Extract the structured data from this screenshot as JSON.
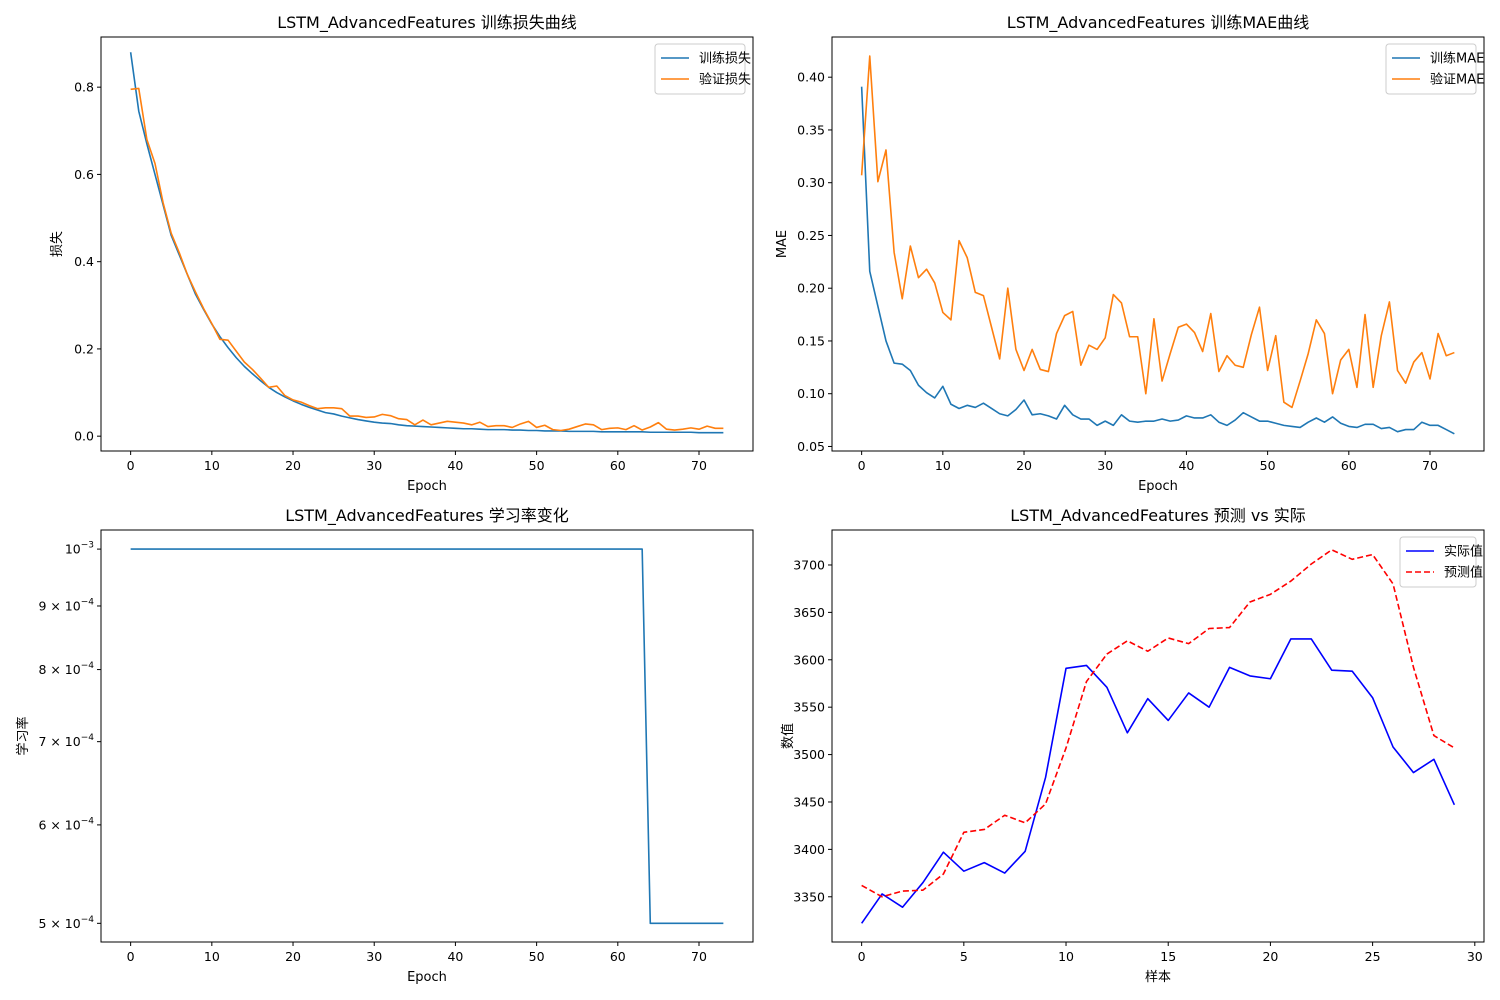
{
  "chart_data": [
    {
      "type": "line",
      "title": "LSTM_AdvancedFeatures 训练损失曲线",
      "xlabel": "Epoch",
      "ylabel": "损失",
      "xlim": [
        -3.65,
        76.65
      ],
      "ylim": [
        -0.034,
        0.915
      ],
      "xticks": [
        0,
        10,
        20,
        30,
        40,
        50,
        60,
        70
      ],
      "yticks": [
        0.0,
        0.2,
        0.4,
        0.6,
        0.8
      ],
      "ytick_labels": [
        "0.0",
        "0.2",
        "0.4",
        "0.6",
        "0.8"
      ],
      "legend": "top-right",
      "series": [
        {
          "name": "训练损失",
          "color": "#1f77b4",
          "x_start": 0,
          "values": [
            0.88,
            0.745,
            0.67,
            0.6,
            0.53,
            0.46,
            0.415,
            0.37,
            0.325,
            0.29,
            0.257,
            0.228,
            0.203,
            0.18,
            0.16,
            0.143,
            0.127,
            0.112,
            0.1,
            0.09,
            0.081,
            0.073,
            0.066,
            0.06,
            0.054,
            0.051,
            0.046,
            0.042,
            0.038,
            0.035,
            0.032,
            0.03,
            0.029,
            0.026,
            0.024,
            0.023,
            0.022,
            0.021,
            0.02,
            0.019,
            0.018,
            0.017,
            0.017,
            0.016,
            0.015,
            0.015,
            0.015,
            0.014,
            0.014,
            0.013,
            0.013,
            0.012,
            0.012,
            0.012,
            0.011,
            0.011,
            0.011,
            0.011,
            0.01,
            0.01,
            0.01,
            0.01,
            0.01,
            0.01,
            0.009,
            0.009,
            0.009,
            0.009,
            0.009,
            0.009,
            0.008,
            0.008,
            0.008,
            0.008
          ]
        },
        {
          "name": "验证损失",
          "color": "#ff7f0e",
          "x_start": 0,
          "values": [
            0.795,
            0.797,
            0.68,
            0.625,
            0.535,
            0.465,
            0.42,
            0.37,
            0.33,
            0.292,
            0.258,
            0.222,
            0.22,
            0.195,
            0.17,
            0.153,
            0.133,
            0.112,
            0.115,
            0.093,
            0.083,
            0.078,
            0.07,
            0.063,
            0.065,
            0.065,
            0.063,
            0.046,
            0.046,
            0.043,
            0.044,
            0.05,
            0.047,
            0.04,
            0.038,
            0.026,
            0.037,
            0.026,
            0.03,
            0.034,
            0.032,
            0.03,
            0.026,
            0.032,
            0.022,
            0.024,
            0.024,
            0.02,
            0.028,
            0.034,
            0.02,
            0.025,
            0.015,
            0.013,
            0.016,
            0.022,
            0.028,
            0.026,
            0.015,
            0.018,
            0.019,
            0.015,
            0.024,
            0.014,
            0.021,
            0.031,
            0.016,
            0.014,
            0.016,
            0.019,
            0.016,
            0.023,
            0.018,
            0.018
          ]
        }
      ]
    },
    {
      "type": "line",
      "title": "LSTM_AdvancedFeatures 训练MAE曲线",
      "xlabel": "Epoch",
      "ylabel": "MAE",
      "xlim": [
        -3.65,
        76.65
      ],
      "ylim": [
        0.0457,
        0.4381
      ],
      "xticks": [
        0,
        10,
        20,
        30,
        40,
        50,
        60,
        70
      ],
      "yticks": [
        0.05,
        0.1,
        0.15,
        0.2,
        0.25,
        0.3,
        0.35,
        0.4
      ],
      "ytick_labels": [
        "0.05",
        "0.10",
        "0.15",
        "0.20",
        "0.25",
        "0.30",
        "0.35",
        "0.40"
      ],
      "legend": "top-right",
      "series": [
        {
          "name": "训练MAE",
          "color": "#1f77b4",
          "x_start": 0,
          "values": [
            0.391,
            0.216,
            0.183,
            0.15,
            0.129,
            0.128,
            0.122,
            0.108,
            0.101,
            0.096,
            0.107,
            0.09,
            0.086,
            0.089,
            0.087,
            0.091,
            0.086,
            0.081,
            0.079,
            0.085,
            0.094,
            0.08,
            0.081,
            0.079,
            0.076,
            0.089,
            0.08,
            0.076,
            0.076,
            0.07,
            0.074,
            0.07,
            0.08,
            0.074,
            0.073,
            0.074,
            0.074,
            0.076,
            0.074,
            0.075,
            0.079,
            0.077,
            0.077,
            0.08,
            0.073,
            0.07,
            0.075,
            0.082,
            0.078,
            0.074,
            0.074,
            0.072,
            0.07,
            0.069,
            0.068,
            0.073,
            0.077,
            0.073,
            0.078,
            0.072,
            0.069,
            0.068,
            0.071,
            0.071,
            0.067,
            0.068,
            0.064,
            0.066,
            0.066,
            0.073,
            0.07,
            0.07,
            0.066,
            0.062
          ]
        },
        {
          "name": "验证MAE",
          "color": "#ff7f0e",
          "x_start": 0,
          "values": [
            0.307,
            0.42,
            0.301,
            0.331,
            0.234,
            0.19,
            0.24,
            0.21,
            0.218,
            0.205,
            0.177,
            0.17,
            0.245,
            0.229,
            0.196,
            0.193,
            0.163,
            0.133,
            0.2,
            0.142,
            0.122,
            0.142,
            0.123,
            0.121,
            0.157,
            0.174,
            0.178,
            0.127,
            0.146,
            0.142,
            0.153,
            0.194,
            0.186,
            0.154,
            0.154,
            0.1,
            0.171,
            0.112,
            0.138,
            0.163,
            0.166,
            0.158,
            0.14,
            0.176,
            0.121,
            0.136,
            0.127,
            0.125,
            0.156,
            0.182,
            0.122,
            0.155,
            0.092,
            0.087,
            0.112,
            0.138,
            0.17,
            0.157,
            0.1,
            0.132,
            0.142,
            0.106,
            0.175,
            0.106,
            0.155,
            0.187,
            0.122,
            0.11,
            0.13,
            0.139,
            0.114,
            0.157,
            0.136,
            0.139
          ]
        }
      ]
    },
    {
      "type": "line",
      "title": "LSTM_AdvancedFeatures 学习率变化",
      "xlabel": "Epoch",
      "ylabel": "学习率",
      "yscale": "log",
      "xlim": [
        -3.65,
        76.65
      ],
      "ylim": [
        0.000483,
        0.001036
      ],
      "xticks": [
        0,
        10,
        20,
        30,
        40,
        50,
        60,
        70
      ],
      "yticks": [
        0.001,
        0.0009,
        0.0008,
        0.0007,
        0.0006,
        0.0005
      ],
      "ytick_labels": [
        {
          "base": "10",
          "exp": "−3"
        },
        {
          "base": "9 × 10",
          "exp": "−4"
        },
        {
          "base": "8 × 10",
          "exp": "−4"
        },
        {
          "base": "7 × 10",
          "exp": "−4"
        },
        {
          "base": "6 × 10",
          "exp": "−4"
        },
        {
          "base": "5 × 10",
          "exp": "−4"
        }
      ],
      "series": [
        {
          "color": "#1f77b4",
          "x": [
            0,
            63,
            64,
            73
          ],
          "values": [
            0.001,
            0.001,
            0.0005,
            0.0005
          ]
        }
      ]
    },
    {
      "type": "line",
      "title": "LSTM_AdvancedFeatures 预测 vs 实际",
      "xlabel": "样本",
      "ylabel": "数值",
      "xlim": [
        -1.45,
        30.45
      ],
      "ylim": [
        3302.3,
        3736.9
      ],
      "xticks": [
        0,
        5,
        10,
        15,
        20,
        25,
        30
      ],
      "yticks": [
        3350,
        3400,
        3450,
        3500,
        3550,
        3600,
        3650,
        3700
      ],
      "ytick_labels": [
        "3350",
        "3400",
        "3450",
        "3500",
        "3550",
        "3600",
        "3650",
        "3700"
      ],
      "legend": "top-right",
      "series": [
        {
          "name": "实际值",
          "color": "#0000ff",
          "dash": false,
          "x_start": 0,
          "values": [
            3322,
            3353,
            3339,
            3365,
            3397,
            3377,
            3386,
            3375,
            3398,
            3476,
            3591,
            3594,
            3571,
            3523,
            3559,
            3536,
            3565,
            3550,
            3592,
            3583,
            3580,
            3622,
            3622,
            3589,
            3588,
            3560,
            3508,
            3481,
            3495,
            3447
          ]
        },
        {
          "name": "预测值",
          "color": "#ff0000",
          "dash": true,
          "x_start": 0,
          "values": [
            3362,
            3350,
            3356,
            3357,
            3374,
            3418,
            3421,
            3436,
            3428,
            3448,
            3507,
            3577,
            3606,
            3620,
            3609,
            3623,
            3617,
            3633,
            3634,
            3661,
            3669,
            3683,
            3701,
            3716,
            3706,
            3711,
            3680,
            3592,
            3520,
            3507
          ]
        }
      ]
    }
  ]
}
